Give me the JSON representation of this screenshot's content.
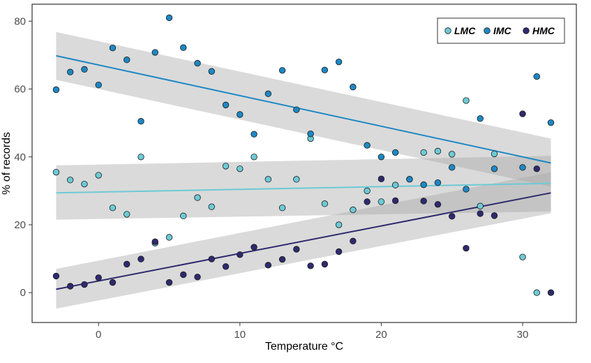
{
  "chart_data": {
    "type": "scatter",
    "title": "",
    "xlabel": "Temperature °C",
    "ylabel": "% of records",
    "xlim": [
      -4.7,
      33.8
    ],
    "ylim": [
      -8.8,
      85
    ],
    "xticks": [
      0,
      10,
      20,
      30
    ],
    "xtick_labels": [
      "0",
      "10",
      "20",
      "30"
    ],
    "yticks": [
      0,
      20,
      40,
      60,
      80
    ],
    "ytick_labels": [
      "0",
      "20",
      "40",
      "60",
      "80"
    ],
    "grid": false,
    "legend": "top-right",
    "series": [
      {
        "name": "LMC",
        "color": "#6ccad6",
        "points": [
          [
            -3,
            35.5
          ],
          [
            -2,
            33.2
          ],
          [
            -1,
            32
          ],
          [
            0,
            34.6
          ],
          [
            1,
            25
          ],
          [
            2,
            23.1
          ],
          [
            3,
            40
          ],
          [
            4,
            14.6
          ],
          [
            5,
            16.3
          ],
          [
            6,
            22.6
          ],
          [
            7,
            28
          ],
          [
            8,
            25.3
          ],
          [
            9,
            37.3
          ],
          [
            10,
            36.5
          ],
          [
            11,
            40
          ],
          [
            12,
            33.4
          ],
          [
            13,
            25
          ],
          [
            14,
            33.4
          ],
          [
            15,
            45.4
          ],
          [
            16,
            26.2
          ],
          [
            17,
            20
          ],
          [
            18,
            24.4
          ],
          [
            19,
            30
          ],
          [
            20,
            26.8
          ],
          [
            21,
            31.7
          ],
          [
            22,
            33.4
          ],
          [
            23,
            41.3
          ],
          [
            24,
            41.7
          ],
          [
            25,
            40.8
          ],
          [
            26,
            56.6
          ],
          [
            27,
            25.5
          ],
          [
            28,
            40.9
          ],
          [
            30,
            10.5
          ],
          [
            31,
            0
          ]
        ],
        "fit": [
          [
            -3,
            29.4
          ],
          [
            32,
            32.2
          ]
        ],
        "ci": {
          "x": [
            -3,
            32
          ],
          "upper": [
            37.5,
            40.3
          ],
          "lower": [
            21.5,
            23.9
          ]
        }
      },
      {
        "name": "IMC",
        "color": "#1d88c4",
        "points": [
          [
            -3,
            59.8
          ],
          [
            -2,
            65
          ],
          [
            -1,
            65.8
          ],
          [
            0,
            61.2
          ],
          [
            1,
            72.1
          ],
          [
            2,
            68.6
          ],
          [
            3,
            50.5
          ],
          [
            4,
            70.8
          ],
          [
            5,
            81
          ],
          [
            6,
            72.2
          ],
          [
            7,
            67.6
          ],
          [
            8,
            65.2
          ],
          [
            9,
            55.3
          ],
          [
            10,
            52.5
          ],
          [
            11,
            46.7
          ],
          [
            12,
            58.6
          ],
          [
            13,
            65.5
          ],
          [
            14,
            53.9
          ],
          [
            15,
            46.8
          ],
          [
            16,
            65.6
          ],
          [
            17,
            68
          ],
          [
            18,
            60.6
          ],
          [
            19,
            43.4
          ],
          [
            20,
            40
          ],
          [
            21,
            41.3
          ],
          [
            22,
            33.4
          ],
          [
            23,
            31.8
          ],
          [
            24,
            32.4
          ],
          [
            25,
            36.9
          ],
          [
            26,
            30.5
          ],
          [
            27,
            51.3
          ],
          [
            28,
            36.5
          ],
          [
            30,
            36.9
          ],
          [
            31,
            63.7
          ],
          [
            32,
            50.1
          ]
        ],
        "fit": [
          [
            -3,
            69.8
          ],
          [
            32,
            38.2
          ]
        ],
        "ci": {
          "x": [
            -3,
            32
          ],
          "upper": [
            76.8,
            45.4
          ],
          "lower": [
            62.7,
            31.2
          ]
        }
      },
      {
        "name": "HMC",
        "color": "#2e2a6e",
        "points": [
          [
            -3,
            4.9
          ],
          [
            -2,
            1.9
          ],
          [
            -1,
            2.4
          ],
          [
            0,
            4.4
          ],
          [
            1,
            3
          ],
          [
            2,
            8.4
          ],
          [
            3,
            9.9
          ],
          [
            4,
            15
          ],
          [
            5,
            3
          ],
          [
            6,
            5.3
          ],
          [
            7,
            4.6
          ],
          [
            8,
            9.9
          ],
          [
            9,
            7.7
          ],
          [
            10,
            11.2
          ],
          [
            11,
            13.4
          ],
          [
            12,
            8.1
          ],
          [
            13,
            9.8
          ],
          [
            14,
            12.8
          ],
          [
            15,
            7.9
          ],
          [
            16,
            8.4
          ],
          [
            17,
            12.1
          ],
          [
            18,
            15.2
          ],
          [
            19,
            26.8
          ],
          [
            20,
            33.5
          ],
          [
            21,
            27.1
          ],
          [
            23,
            27
          ],
          [
            24,
            26
          ],
          [
            25,
            22.5
          ],
          [
            26,
            13.1
          ],
          [
            27,
            23.3
          ],
          [
            28,
            22.7
          ],
          [
            30,
            52.7
          ],
          [
            31,
            36.5
          ],
          [
            32,
            0
          ]
        ],
        "fit": [
          [
            -3,
            1
          ],
          [
            32,
            29.4
          ]
        ],
        "ci": {
          "x": [
            -3,
            32
          ],
          "upper": [
            7,
            35.5
          ],
          "lower": [
            -4.7,
            23.4
          ]
        }
      }
    ]
  }
}
